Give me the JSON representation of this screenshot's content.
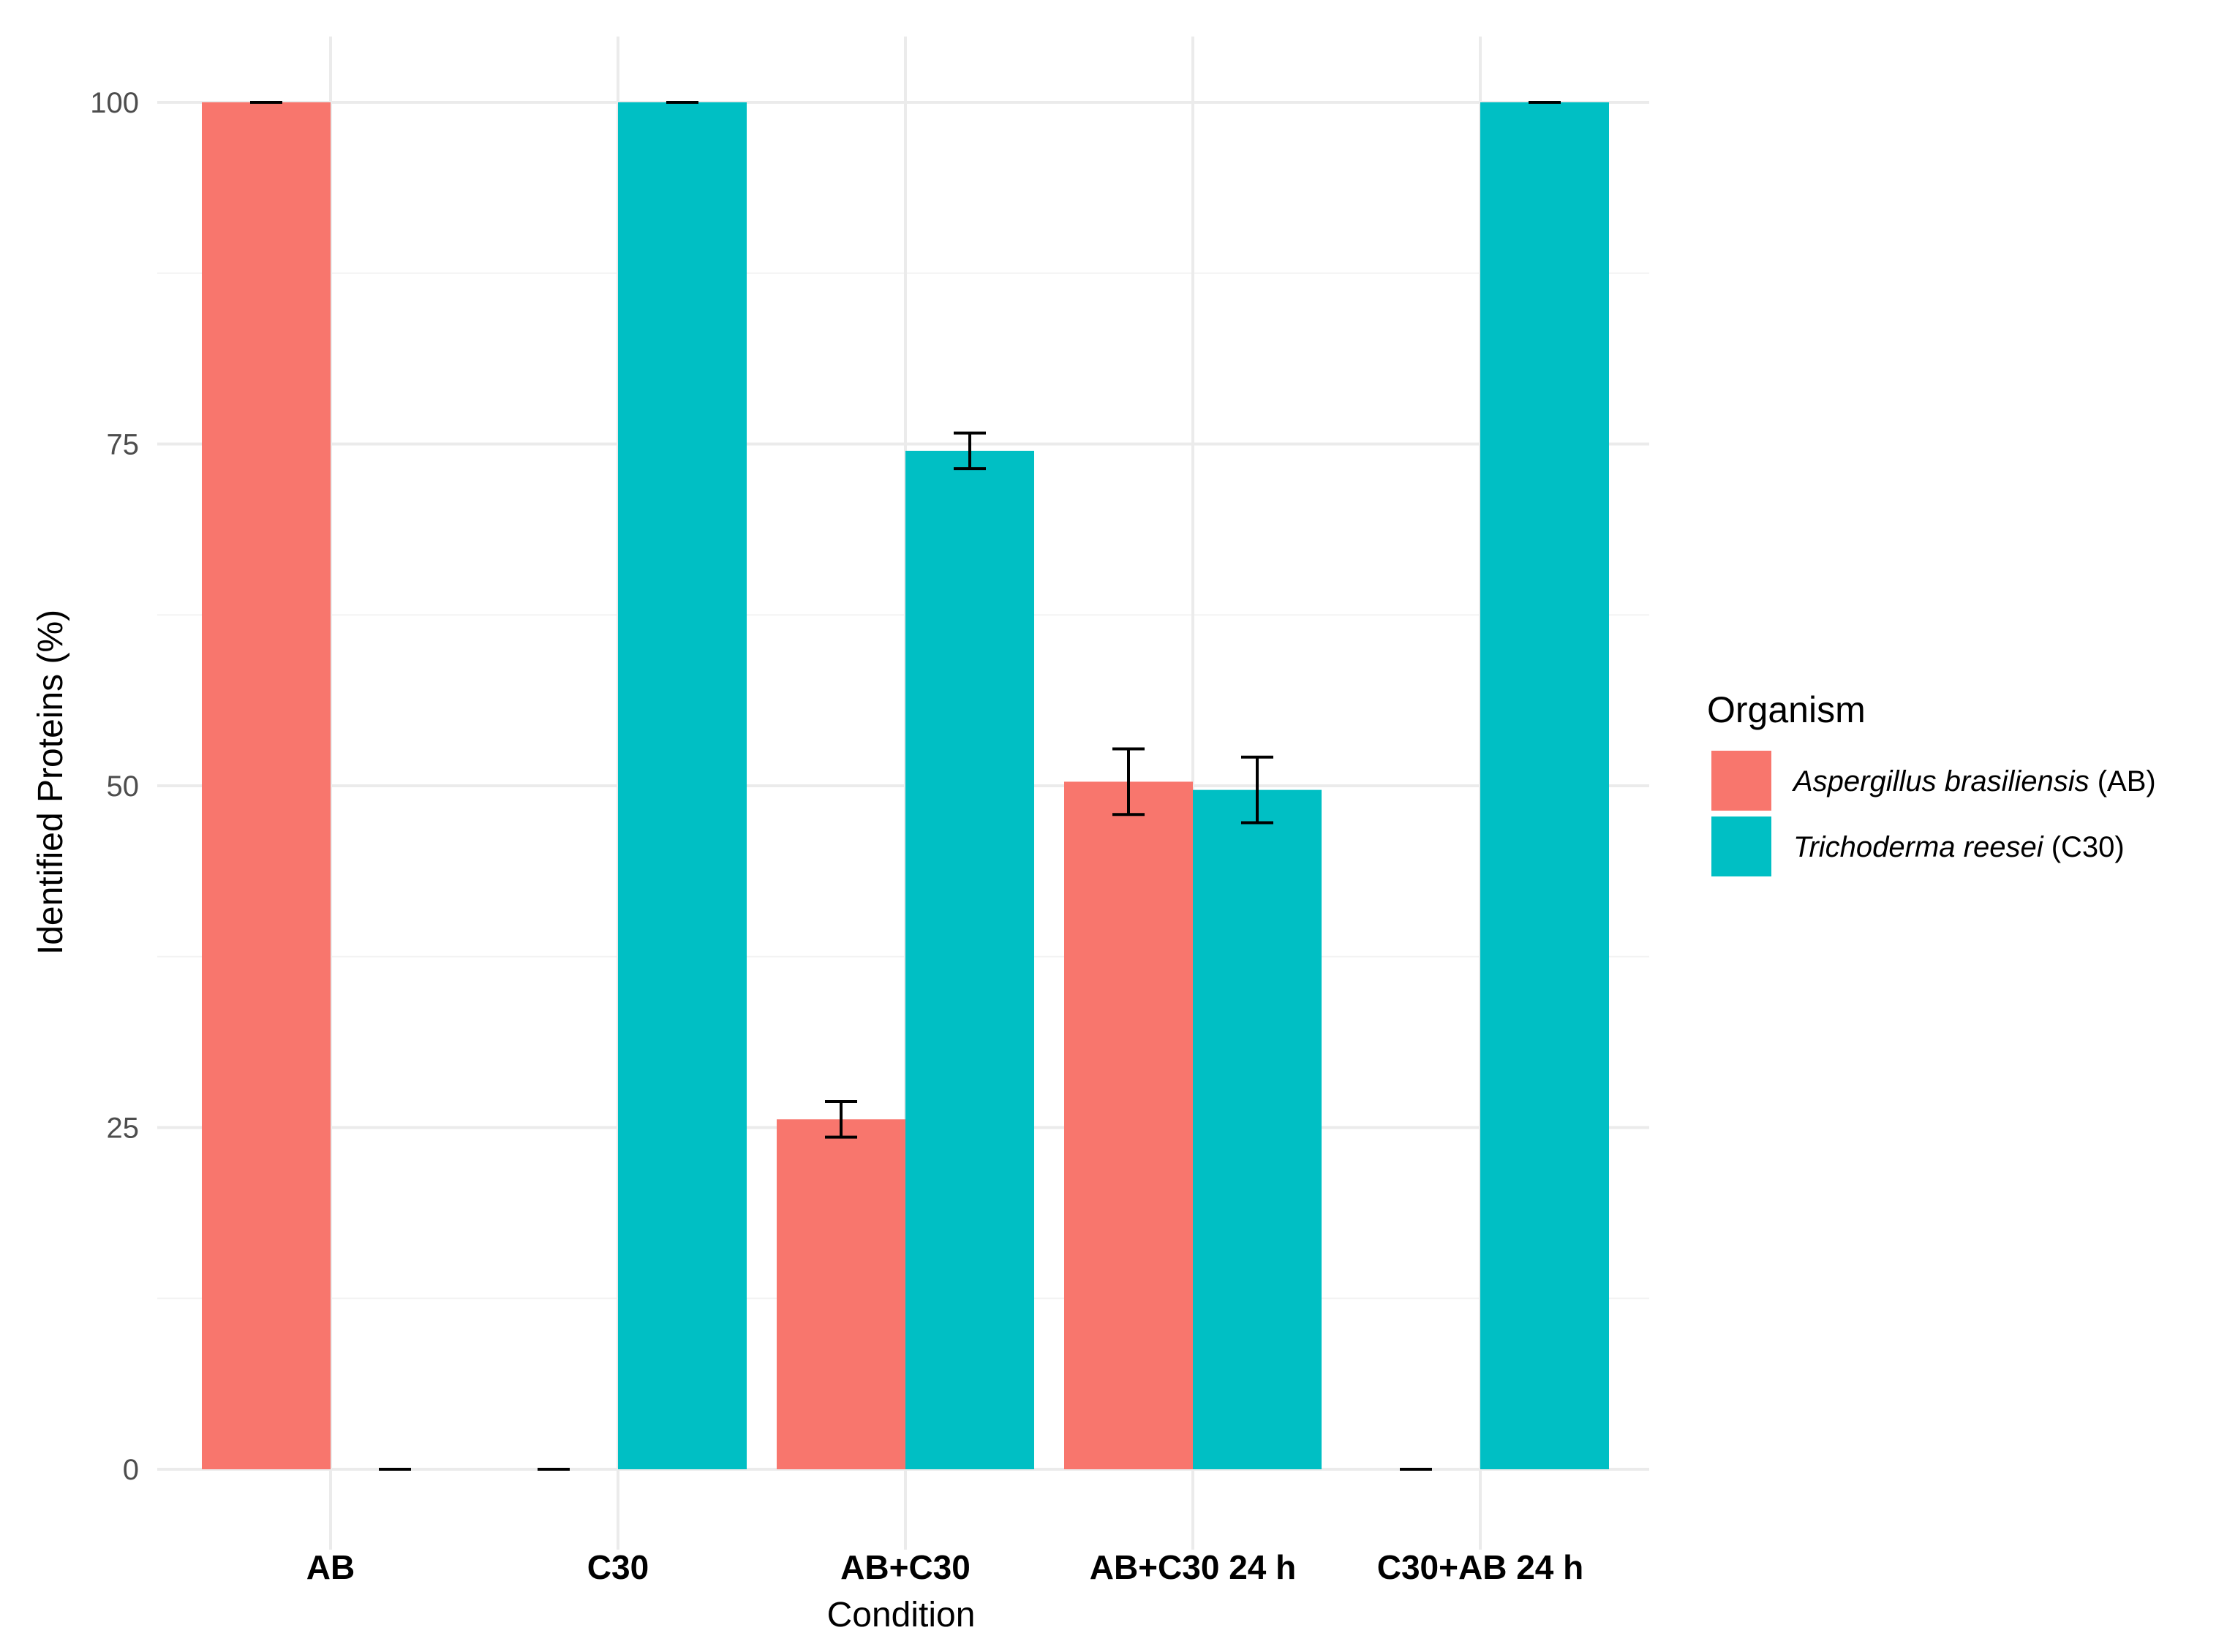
{
  "chart_data": {
    "type": "bar",
    "title": "",
    "xlabel": "Condition",
    "ylabel": "Identified Proteins (%)",
    "ylim": [
      -3,
      105
    ],
    "yticks": [
      0,
      25,
      50,
      75,
      100
    ],
    "grid": true,
    "categories": [
      "AB",
      "C30",
      "AB+C30",
      "AB+C30 24 h",
      "C30+AB 24 h"
    ],
    "series": [
      {
        "name": "Aspergillus brasiliensis (AB)",
        "name_italic": "Aspergillus brasiliensis",
        "name_suffix": " (AB)",
        "color": "#F8766D",
        "values": [
          100,
          0,
          25.6,
          50.3,
          0
        ],
        "errors": [
          0,
          0,
          1.3,
          2.4,
          0
        ]
      },
      {
        "name": "Trichoderma reesei (C30)",
        "name_italic": "Trichoderma reesei",
        "name_suffix": " (C30)",
        "color": "#00BFC4",
        "values": [
          0,
          100,
          74.5,
          49.7,
          100
        ],
        "errors": [
          0,
          0,
          1.3,
          2.4,
          0
        ]
      }
    ],
    "legend": {
      "title": "Organism",
      "position": "right"
    }
  }
}
